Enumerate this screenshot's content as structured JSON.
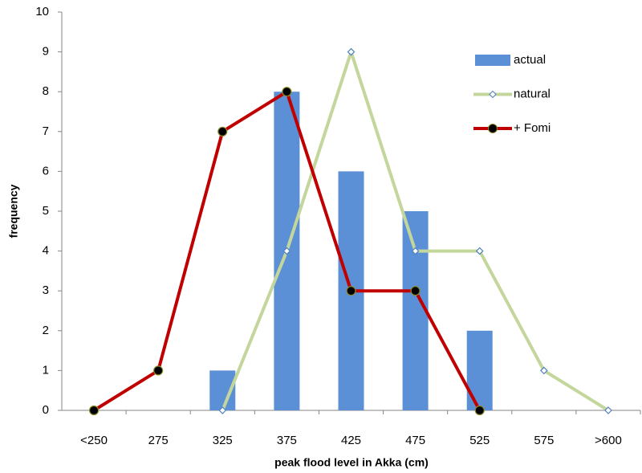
{
  "chart_data": {
    "type": "bar",
    "x_label": "peak flood level in Akka (cm)",
    "y_label": "frequency",
    "categories": [
      "<250",
      "275",
      "325",
      "375",
      "425",
      "475",
      "525",
      "575",
      ">600"
    ],
    "series": [
      {
        "name": "actual",
        "type": "bar",
        "color": "#5b8fd6",
        "values": [
          null,
          null,
          1,
          8,
          6,
          5,
          2,
          null,
          null
        ]
      },
      {
        "name": "natural",
        "type": "line",
        "color": "#c3d69b",
        "marker": "diamond",
        "values": [
          null,
          null,
          0,
          4,
          9,
          4,
          4,
          1,
          0
        ]
      },
      {
        "name": "+ Fomi",
        "type": "line",
        "color": "#c00000",
        "marker": "circle",
        "values": [
          0,
          1,
          7,
          8,
          3,
          3,
          0,
          null,
          null
        ]
      }
    ],
    "ylim": [
      0,
      10
    ],
    "yticks": [
      0,
      1,
      2,
      3,
      4,
      5,
      6,
      7,
      8,
      9,
      10
    ],
    "grid": false,
    "legend": "top-right"
  }
}
